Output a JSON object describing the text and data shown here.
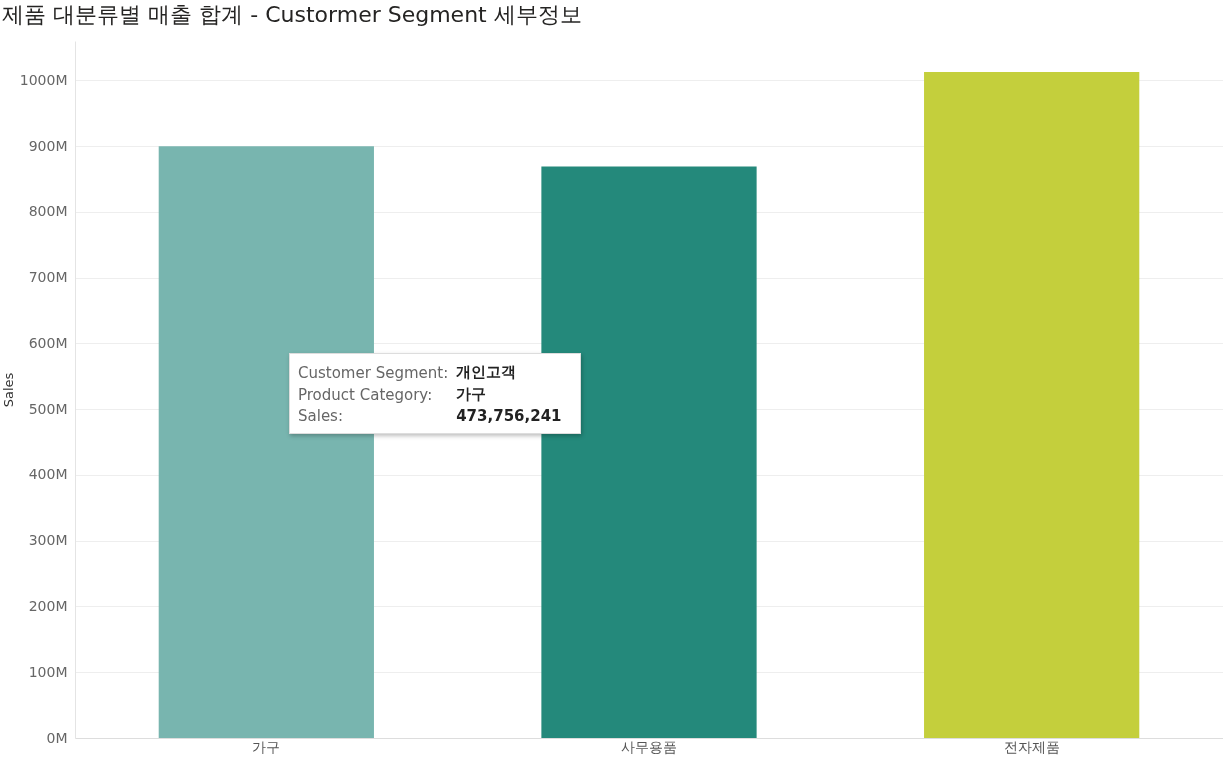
{
  "chart_data": {
    "type": "bar",
    "title": "제품 대분류별 매출 합계 - Custormer Segment 세부정보",
    "ylabel": "Sales",
    "categories": [
      "가구",
      "사무용품",
      "전자제품"
    ],
    "values": [
      900000000,
      869000000,
      1013000000
    ],
    "colors": [
      "#78b5af",
      "#24897b",
      "#c4cf3c"
    ],
    "ylim": [
      0,
      1060000000
    ],
    "yticks": [
      {
        "value": 0,
        "label": "0M"
      },
      {
        "value": 100000000,
        "label": "100M"
      },
      {
        "value": 200000000,
        "label": "200M"
      },
      {
        "value": 300000000,
        "label": "300M"
      },
      {
        "value": 400000000,
        "label": "400M"
      },
      {
        "value": 500000000,
        "label": "500M"
      },
      {
        "value": 600000000,
        "label": "600M"
      },
      {
        "value": 700000000,
        "label": "700M"
      },
      {
        "value": 800000000,
        "label": "800M"
      },
      {
        "value": 900000000,
        "label": "900M"
      },
      {
        "value": 1000000000,
        "label": "1000M"
      }
    ],
    "grid": "y",
    "annotations": [
      [
        "Customer Segment:",
        "개인고객"
      ],
      [
        "Product Category:",
        "가구"
      ],
      [
        "Sales:",
        "473,756,241"
      ]
    ]
  }
}
